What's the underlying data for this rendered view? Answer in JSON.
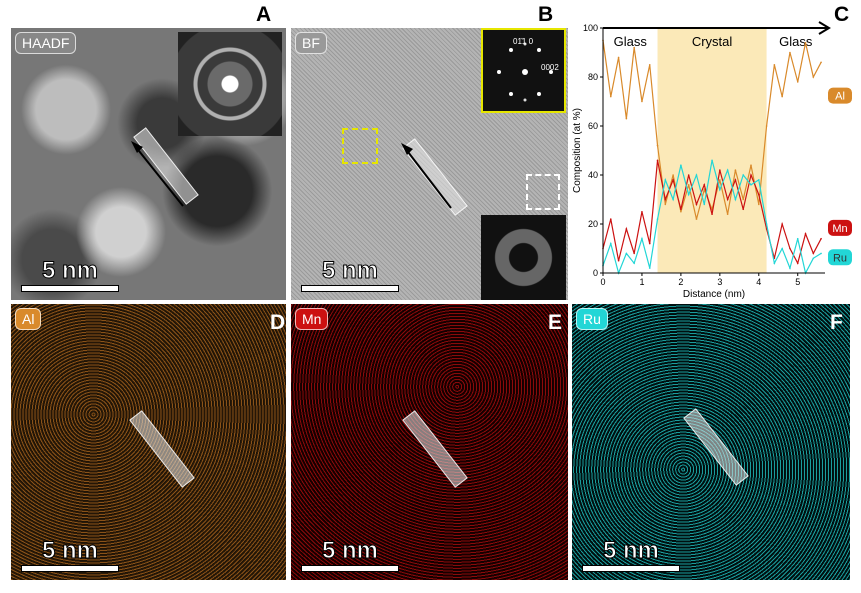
{
  "panels": {
    "A": {
      "letter": "A",
      "tag": "HAADF",
      "scale": "5 nm"
    },
    "B": {
      "letter": "B",
      "tag": "BF",
      "scale": "5 nm",
      "fft_labels": [
        "0́1̄1́0",
        "0002"
      ]
    },
    "C": {
      "letter": "C"
    },
    "D": {
      "letter": "D",
      "tag": "Al",
      "scale": "5 nm"
    },
    "E": {
      "letter": "E",
      "tag": "Mn",
      "scale": "5 nm"
    },
    "F": {
      "letter": "F",
      "tag": "Ru",
      "scale": "5 nm"
    }
  },
  "fft_labels": {
    "label1": "01̄1 0",
    "label2": "0002"
  },
  "colors": {
    "al": "#d98a2b",
    "mn": "#cc1111",
    "ru": "#22d6d6",
    "crystal_band": "#fbe9b8",
    "inset_frame": "#e6e600"
  },
  "chart_data": {
    "type": "line",
    "xlabel": "Distance (nm)",
    "ylabel": "Composition (at %)",
    "xlim": [
      0,
      5.7
    ],
    "ylim": [
      0,
      100
    ],
    "xticks": [
      0,
      1,
      2,
      3,
      4,
      5
    ],
    "yticks": [
      0,
      20,
      40,
      60,
      80,
      100
    ],
    "regions": [
      {
        "label": "Glass",
        "from": 0,
        "to": 1.4
      },
      {
        "label": "Crystal",
        "from": 1.4,
        "to": 4.2
      },
      {
        "label": "Glass",
        "from": 4.2,
        "to": 5.7
      }
    ],
    "series": [
      {
        "name": "Al",
        "color": "#d98a2b",
        "x": [
          0,
          0.2,
          0.4,
          0.6,
          0.8,
          1.0,
          1.2,
          1.4,
          1.6,
          1.8,
          2.0,
          2.2,
          2.4,
          2.6,
          2.8,
          3.0,
          3.2,
          3.4,
          3.6,
          3.8,
          4.0,
          4.2,
          4.4,
          4.6,
          4.8,
          5.0,
          5.2,
          5.4,
          5.6
        ],
        "values": [
          95,
          72,
          88,
          63,
          92,
          70,
          85,
          52,
          28,
          40,
          25,
          36,
          22,
          34,
          26,
          38,
          24,
          42,
          30,
          44,
          28,
          60,
          85,
          72,
          90,
          78,
          94,
          80,
          86
        ]
      },
      {
        "name": "Mn",
        "color": "#cc1111",
        "x": [
          0,
          0.2,
          0.4,
          0.6,
          0.8,
          1.0,
          1.2,
          1.4,
          1.6,
          1.8,
          2.0,
          2.2,
          2.4,
          2.6,
          2.8,
          3.0,
          3.2,
          3.4,
          3.6,
          3.8,
          4.0,
          4.2,
          4.4,
          4.6,
          4.8,
          5.0,
          5.2,
          5.4,
          5.6
        ],
        "values": [
          10,
          22,
          5,
          18,
          8,
          25,
          12,
          46,
          30,
          38,
          26,
          40,
          28,
          36,
          24,
          42,
          30,
          38,
          26,
          40,
          32,
          18,
          6,
          20,
          10,
          4,
          16,
          8,
          14
        ]
      },
      {
        "name": "Ru",
        "color": "#22d6d6",
        "x": [
          0,
          0.2,
          0.4,
          0.6,
          0.8,
          1.0,
          1.2,
          1.4,
          1.6,
          1.8,
          2.0,
          2.2,
          2.4,
          2.6,
          2.8,
          3.0,
          3.2,
          3.4,
          3.6,
          3.8,
          4.0,
          4.2,
          4.4,
          4.6,
          4.8,
          5.0,
          5.2,
          5.4,
          5.6
        ],
        "values": [
          3,
          12,
          0,
          8,
          4,
          14,
          2,
          22,
          38,
          30,
          44,
          32,
          40,
          28,
          46,
          34,
          42,
          30,
          40,
          36,
          38,
          20,
          4,
          10,
          2,
          14,
          0,
          6,
          8
        ]
      }
    ]
  }
}
